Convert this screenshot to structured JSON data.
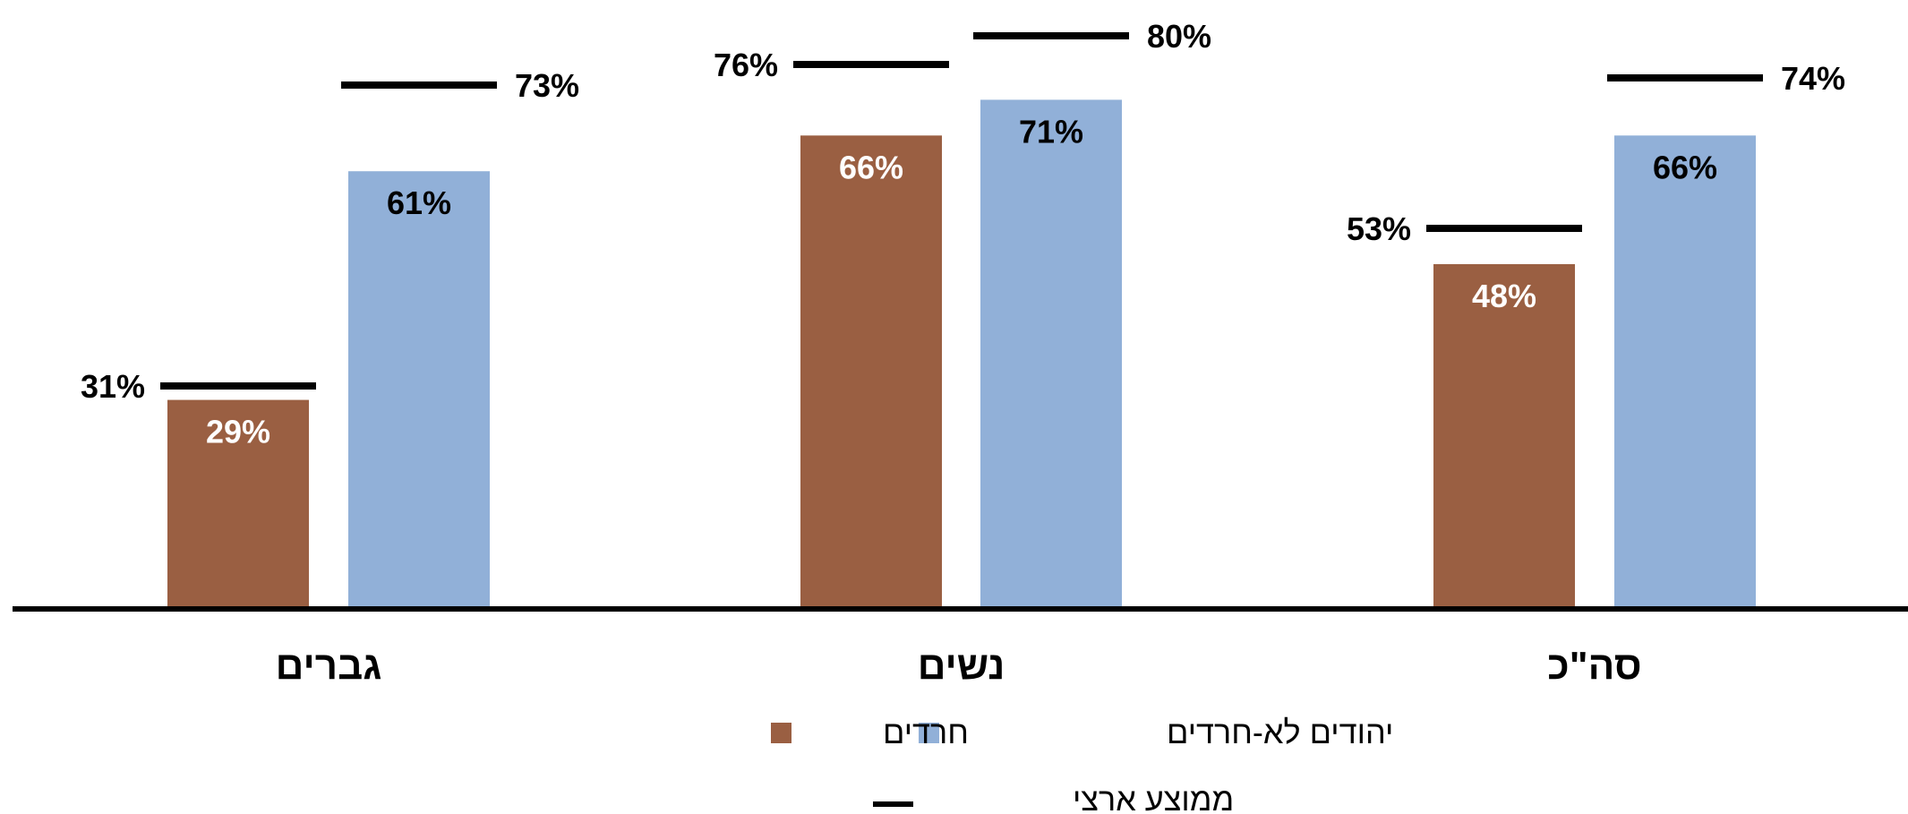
{
  "chart_data": {
    "type": "bar",
    "categories": [
      "גברים",
      "נשים",
      "סה\"כ"
    ],
    "series": [
      {
        "name": "חרדים",
        "color": "#9A5F42",
        "label_color": "#ffffff",
        "values": [
          29,
          66,
          48
        ]
      },
      {
        "name": "יהודים לא-חרדים",
        "color": "#91B0D8",
        "label_color": "#000000",
        "values": [
          61,
          71,
          66
        ]
      }
    ],
    "reference": {
      "name": "ממוצע ארצי",
      "color": "#000000",
      "values": [
        [
          31,
          73
        ],
        [
          76,
          80
        ],
        [
          53,
          74
        ]
      ]
    },
    "value_suffix": "%",
    "ylim": [
      0,
      92
    ],
    "xlabel": "",
    "ylabel": "",
    "grid": false,
    "legend_position": "bottom"
  }
}
